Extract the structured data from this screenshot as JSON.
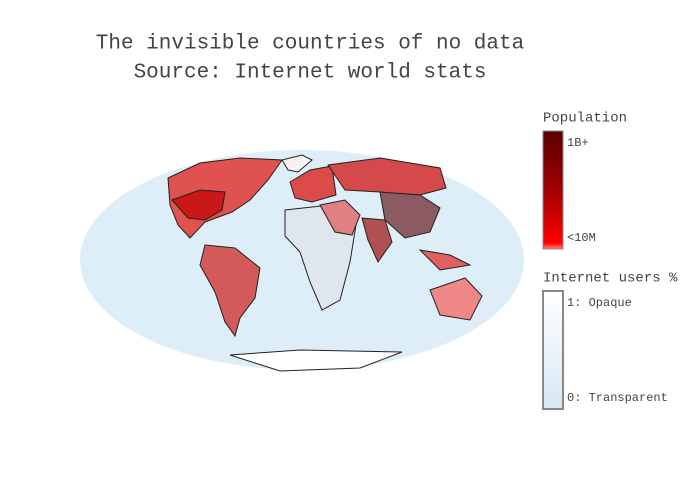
{
  "title": {
    "line1": "The invisible countries of no data",
    "line2": "Source: Internet world stats"
  },
  "legends": [
    {
      "title": "Population",
      "top_label": "1B+",
      "bottom_label": "<10M"
    },
    {
      "title": "Internet users %",
      "top_label": "1: Opaque",
      "bottom_label": "0: Transparent"
    }
  ]
}
